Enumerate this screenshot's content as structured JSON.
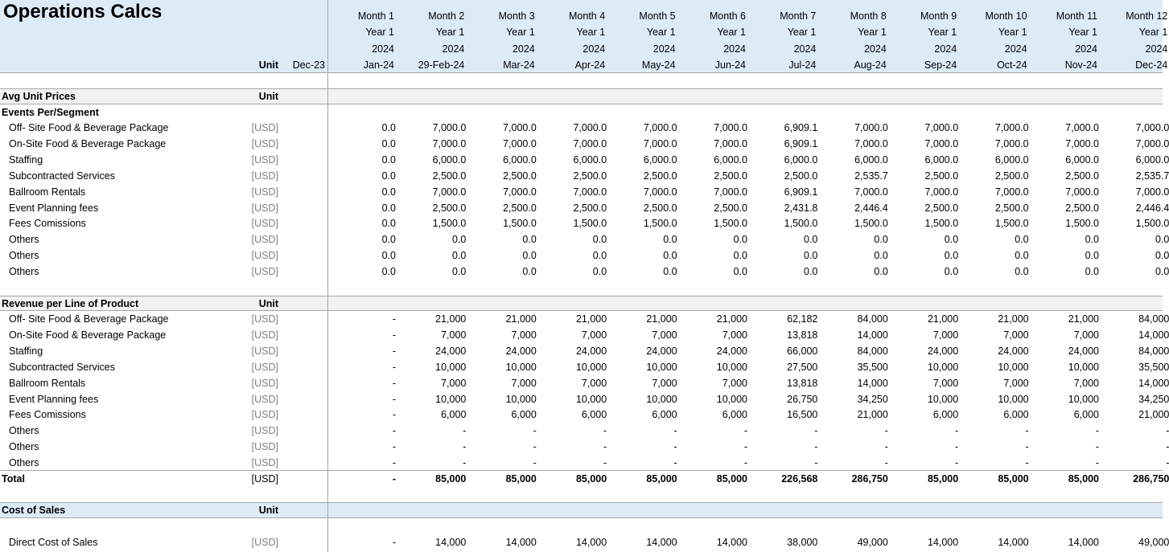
{
  "title": "Operations Calcs",
  "header": {
    "unit_label": "Unit",
    "opening": "Dec-23",
    "months": [
      {
        "month": "Month 1",
        "year": "Year 1",
        "fy": "2024",
        "date": "Jan-24"
      },
      {
        "month": "Month 2",
        "year": "Year 1",
        "fy": "2024",
        "date": "29-Feb-24"
      },
      {
        "month": "Month 3",
        "year": "Year 1",
        "fy": "2024",
        "date": "Mar-24"
      },
      {
        "month": "Month 4",
        "year": "Year 1",
        "fy": "2024",
        "date": "Apr-24"
      },
      {
        "month": "Month 5",
        "year": "Year 1",
        "fy": "2024",
        "date": "May-24"
      },
      {
        "month": "Month 6",
        "year": "Year 1",
        "fy": "2024",
        "date": "Jun-24"
      },
      {
        "month": "Month 7",
        "year": "Year 1",
        "fy": "2024",
        "date": "Jul-24"
      },
      {
        "month": "Month 8",
        "year": "Year 1",
        "fy": "2024",
        "date": "Aug-24"
      },
      {
        "month": "Month 9",
        "year": "Year 1",
        "fy": "2024",
        "date": "Sep-24"
      },
      {
        "month": "Month 10",
        "year": "Year 1",
        "fy": "2024",
        "date": "Oct-24"
      },
      {
        "month": "Month 11",
        "year": "Year 1",
        "fy": "2024",
        "date": "Nov-24"
      },
      {
        "month": "Month 12",
        "year": "Year 1",
        "fy": "2024",
        "date": "Dec-24"
      }
    ]
  },
  "sections": [
    {
      "title": "Avg Unit Prices",
      "unit": "Unit",
      "subtitle": "Events Per/Segment",
      "rows": [
        {
          "label": "Off- Site Food & Beverage Package",
          "unit": "[USD]",
          "values": [
            "0.0",
            "7,000.0",
            "7,000.0",
            "7,000.0",
            "7,000.0",
            "7,000.0",
            "6,909.1",
            "7,000.0",
            "7,000.0",
            "7,000.0",
            "7,000.0",
            "7,000.0"
          ]
        },
        {
          "label": "On-Site Food & Beverage Package",
          "unit": "[USD]",
          "values": [
            "0.0",
            "7,000.0",
            "7,000.0",
            "7,000.0",
            "7,000.0",
            "7,000.0",
            "6,909.1",
            "7,000.0",
            "7,000.0",
            "7,000.0",
            "7,000.0",
            "7,000.0"
          ]
        },
        {
          "label": "Staffing",
          "unit": "[USD]",
          "values": [
            "0.0",
            "6,000.0",
            "6,000.0",
            "6,000.0",
            "6,000.0",
            "6,000.0",
            "6,000.0",
            "6,000.0",
            "6,000.0",
            "6,000.0",
            "6,000.0",
            "6,000.0"
          ]
        },
        {
          "label": "Subcontracted Services",
          "unit": "[USD]",
          "values": [
            "0.0",
            "2,500.0",
            "2,500.0",
            "2,500.0",
            "2,500.0",
            "2,500.0",
            "2,500.0",
            "2,535.7",
            "2,500.0",
            "2,500.0",
            "2,500.0",
            "2,535.7"
          ]
        },
        {
          "label": "Ballroom Rentals",
          "unit": "[USD]",
          "values": [
            "0.0",
            "7,000.0",
            "7,000.0",
            "7,000.0",
            "7,000.0",
            "7,000.0",
            "6,909.1",
            "7,000.0",
            "7,000.0",
            "7,000.0",
            "7,000.0",
            "7,000.0"
          ]
        },
        {
          "label": "Event Planning fees",
          "unit": "[USD]",
          "values": [
            "0.0",
            "2,500.0",
            "2,500.0",
            "2,500.0",
            "2,500.0",
            "2,500.0",
            "2,431.8",
            "2,446.4",
            "2,500.0",
            "2,500.0",
            "2,500.0",
            "2,446.4"
          ]
        },
        {
          "label": "Fees Comissions",
          "unit": "[USD]",
          "values": [
            "0.0",
            "1,500.0",
            "1,500.0",
            "1,500.0",
            "1,500.0",
            "1,500.0",
            "1,500.0",
            "1,500.0",
            "1,500.0",
            "1,500.0",
            "1,500.0",
            "1,500.0"
          ]
        },
        {
          "label": "Others",
          "unit": "[USD]",
          "values": [
            "0.0",
            "0.0",
            "0.0",
            "0.0",
            "0.0",
            "0.0",
            "0.0",
            "0.0",
            "0.0",
            "0.0",
            "0.0",
            "0.0"
          ]
        },
        {
          "label": "Others",
          "unit": "[USD]",
          "values": [
            "0.0",
            "0.0",
            "0.0",
            "0.0",
            "0.0",
            "0.0",
            "0.0",
            "0.0",
            "0.0",
            "0.0",
            "0.0",
            "0.0"
          ]
        },
        {
          "label": "Others",
          "unit": "[USD]",
          "values": [
            "0.0",
            "0.0",
            "0.0",
            "0.0",
            "0.0",
            "0.0",
            "0.0",
            "0.0",
            "0.0",
            "0.0",
            "0.0",
            "0.0"
          ]
        }
      ]
    },
    {
      "title": "Revenue per Line of Product",
      "unit": "Unit",
      "rows": [
        {
          "label": "Off- Site Food & Beverage Package",
          "unit": "[USD]",
          "values": [
            "-",
            "21,000",
            "21,000",
            "21,000",
            "21,000",
            "21,000",
            "62,182",
            "84,000",
            "21,000",
            "21,000",
            "21,000",
            "84,000"
          ]
        },
        {
          "label": "On-Site Food & Beverage Package",
          "unit": "[USD]",
          "values": [
            "-",
            "7,000",
            "7,000",
            "7,000",
            "7,000",
            "7,000",
            "13,818",
            "14,000",
            "7,000",
            "7,000",
            "7,000",
            "14,000"
          ]
        },
        {
          "label": "Staffing",
          "unit": "[USD]",
          "values": [
            "-",
            "24,000",
            "24,000",
            "24,000",
            "24,000",
            "24,000",
            "66,000",
            "84,000",
            "24,000",
            "24,000",
            "24,000",
            "84,000"
          ]
        },
        {
          "label": "Subcontracted Services",
          "unit": "[USD]",
          "values": [
            "-",
            "10,000",
            "10,000",
            "10,000",
            "10,000",
            "10,000",
            "27,500",
            "35,500",
            "10,000",
            "10,000",
            "10,000",
            "35,500"
          ]
        },
        {
          "label": "Ballroom Rentals",
          "unit": "[USD]",
          "values": [
            "-",
            "7,000",
            "7,000",
            "7,000",
            "7,000",
            "7,000",
            "13,818",
            "14,000",
            "7,000",
            "7,000",
            "7,000",
            "14,000"
          ]
        },
        {
          "label": "Event Planning fees",
          "unit": "[USD]",
          "values": [
            "-",
            "10,000",
            "10,000",
            "10,000",
            "10,000",
            "10,000",
            "26,750",
            "34,250",
            "10,000",
            "10,000",
            "10,000",
            "34,250"
          ]
        },
        {
          "label": "Fees Comissions",
          "unit": "[USD]",
          "values": [
            "-",
            "6,000",
            "6,000",
            "6,000",
            "6,000",
            "6,000",
            "16,500",
            "21,000",
            "6,000",
            "6,000",
            "6,000",
            "21,000"
          ]
        },
        {
          "label": "Others",
          "unit": "[USD]",
          "values": [
            "-",
            "-",
            "-",
            "-",
            "-",
            "-",
            "-",
            "-",
            "-",
            "-",
            "-",
            "-"
          ]
        },
        {
          "label": "Others",
          "unit": "[USD]",
          "values": [
            "-",
            "-",
            "-",
            "-",
            "-",
            "-",
            "-",
            "-",
            "-",
            "-",
            "-",
            "-"
          ]
        },
        {
          "label": "Others",
          "unit": "[USD]",
          "values": [
            "-",
            "-",
            "-",
            "-",
            "-",
            "-",
            "-",
            "-",
            "-",
            "-",
            "-",
            "-"
          ]
        }
      ],
      "total": {
        "label": "Total",
        "unit": "[USD]",
        "values": [
          "-",
          "85,000",
          "85,000",
          "85,000",
          "85,000",
          "85,000",
          "226,568",
          "286,750",
          "85,000",
          "85,000",
          "85,000",
          "286,750"
        ]
      }
    },
    {
      "title": "Cost of Sales",
      "unit": "Unit",
      "rows": [
        {
          "label": "Direct Cost of Sales",
          "unit": "[USD]",
          "values": [
            "-",
            "14,000",
            "14,000",
            "14,000",
            "14,000",
            "14,000",
            "38,000",
            "49,000",
            "14,000",
            "14,000",
            "14,000",
            "49,000"
          ]
        }
      ]
    }
  ]
}
